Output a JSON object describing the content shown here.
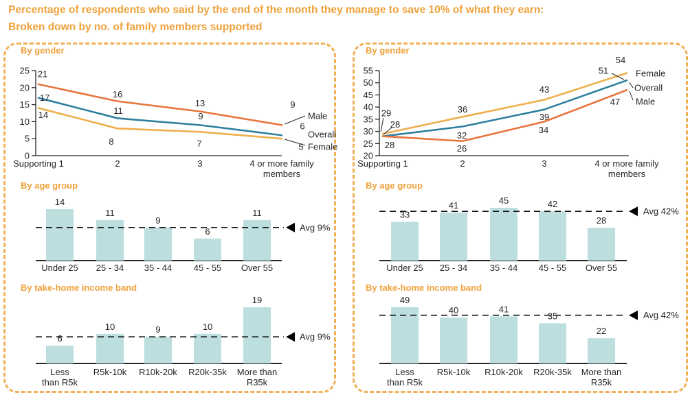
{
  "title": {
    "line1": "Percentage of respondents who said by the end of the month they manage to save 10% of what they earn:",
    "line2": "Broken down by no. of family members supported"
  },
  "colors": {
    "accent_orange": "#EFA23C",
    "panel_border": "#F2B055",
    "male": "#E8743C",
    "overall": "#2E7F9E",
    "female": "#EFAF4D",
    "bar_fill": "#BCDEDE",
    "text_dark": "#262626",
    "avg_line": "#111111"
  },
  "chart_data": [
    {
      "id": "gender-line-left",
      "section_heading": "By gender",
      "type": "line",
      "categories": [
        "Supporting 1",
        "2",
        "3",
        "4 or more family\nmembers"
      ],
      "series": [
        {
          "name": "Male",
          "color_key": "male",
          "values": [
            21,
            16,
            13,
            9
          ]
        },
        {
          "name": "Overall",
          "color_key": "overall",
          "values": [
            17,
            11,
            9,
            6
          ]
        },
        {
          "name": "Female",
          "color_key": "female",
          "values": [
            14,
            8,
            7,
            5
          ]
        }
      ],
      "ylim": [
        0,
        25
      ],
      "yticks": [
        0,
        5,
        10,
        15,
        20,
        25
      ],
      "legend_position": "right-of-line-ends"
    },
    {
      "id": "age-bar-left",
      "section_heading": "By age group",
      "type": "bar",
      "categories": [
        "Under 25",
        "25 - 34",
        "35 - 44",
        "45 - 55",
        "Over 55"
      ],
      "values": [
        14,
        11,
        9,
        6,
        11
      ],
      "average_value": 9,
      "average_label": "Avg 9%"
    },
    {
      "id": "income-bar-left",
      "section_heading": "By take-home income band",
      "type": "bar",
      "categories": [
        "Less\nthan R5k",
        "R5k-10k",
        "R10k-20k",
        "R20k-35k",
        "More than\nR35k"
      ],
      "values": [
        6,
        10,
        9,
        10,
        19
      ],
      "average_value": 9,
      "average_label": "Avg 9%"
    },
    {
      "id": "gender-line-right",
      "section_heading": "By gender",
      "type": "line",
      "categories": [
        "Supporting 1",
        "2",
        "3",
        "4 or more family\nmembers"
      ],
      "series": [
        {
          "name": "Female",
          "color_key": "female",
          "values": [
            29,
            36,
            43,
            54
          ]
        },
        {
          "name": "Overall",
          "color_key": "overall",
          "values": [
            28,
            32,
            39,
            51
          ]
        },
        {
          "name": "Male",
          "color_key": "male",
          "values": [
            28,
            26,
            34,
            47
          ]
        }
      ],
      "ylim": [
        20,
        55
      ],
      "yticks": [
        20,
        25,
        30,
        35,
        40,
        45,
        50,
        55
      ],
      "legend_position": "right-of-line-ends"
    },
    {
      "id": "age-bar-right",
      "section_heading": "By age group",
      "type": "bar",
      "categories": [
        "Under 25",
        "25 - 34",
        "35 - 44",
        "45 - 55",
        "Over 55"
      ],
      "values": [
        33,
        41,
        45,
        42,
        28
      ],
      "average_value": 42,
      "average_label": "Avg 42%"
    },
    {
      "id": "income-bar-right",
      "section_heading": "By take-home income band",
      "type": "bar",
      "categories": [
        "Less\nthan R5k",
        "R5k-10k",
        "R10k-20k",
        "R20k-35k",
        "More than\nR35k"
      ],
      "values": [
        49,
        40,
        41,
        35,
        22
      ],
      "average_value": 42,
      "average_label": "Avg 42%"
    }
  ]
}
